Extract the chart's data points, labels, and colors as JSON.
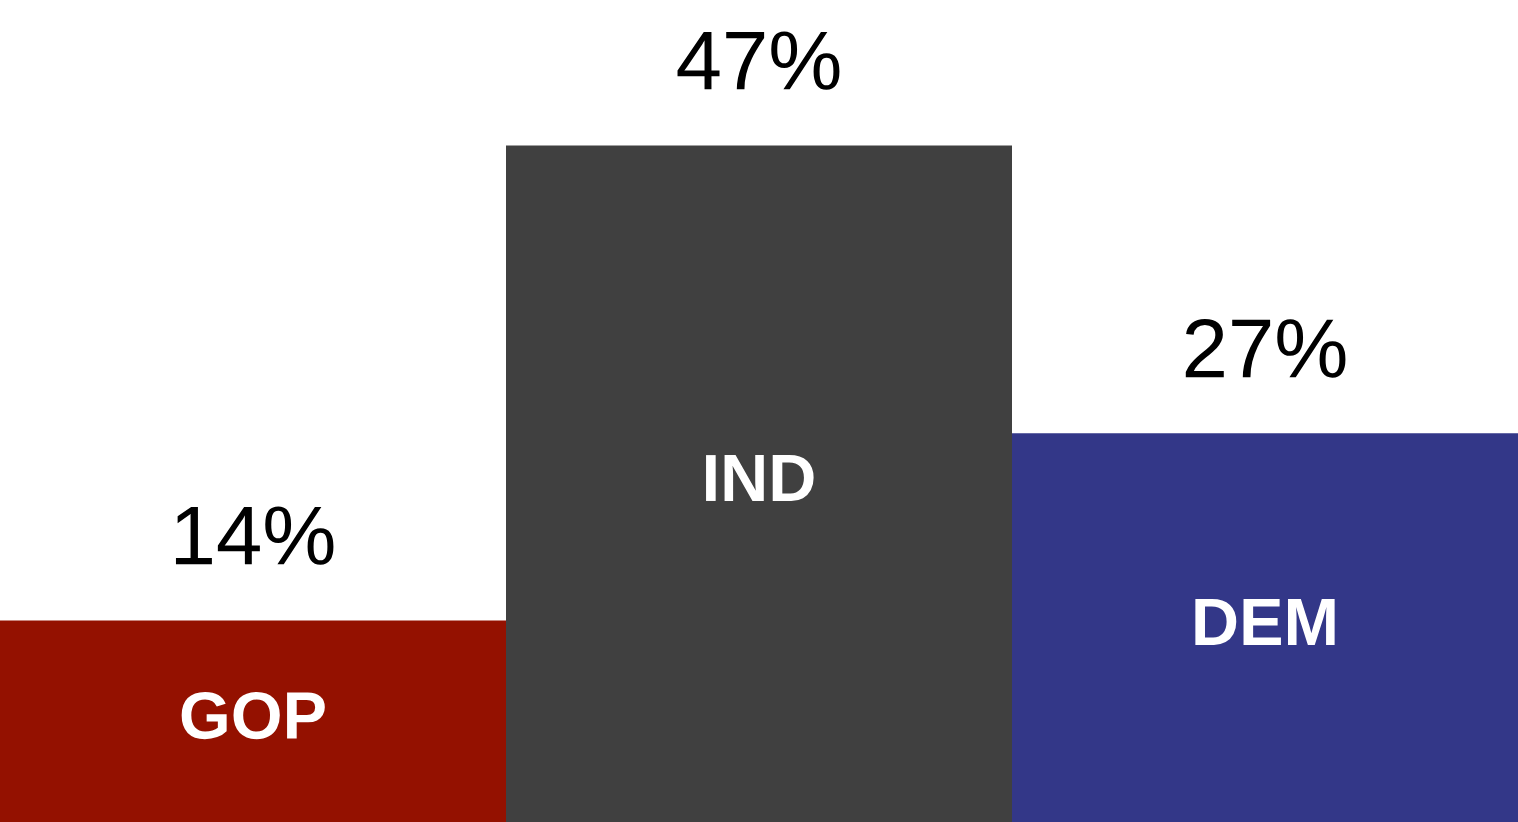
{
  "chart_data": {
    "type": "bar",
    "categories": [
      "GOP",
      "IND",
      "DEM"
    ],
    "values": [
      14,
      47,
      27
    ],
    "colors": [
      "#941100",
      "#404040",
      "#333788"
    ],
    "value_labels": [
      "14%",
      "47%",
      "27%"
    ]
  }
}
